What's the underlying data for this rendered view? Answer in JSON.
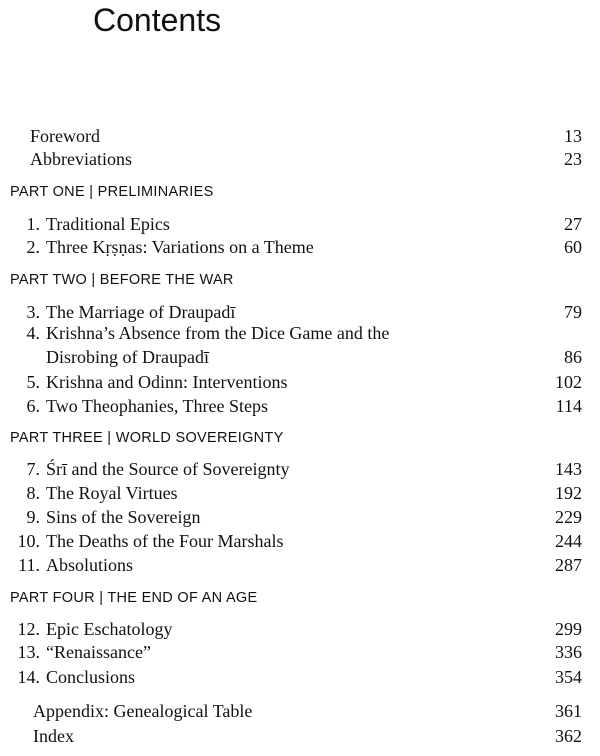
{
  "title": "Contents",
  "front_matter": [
    {
      "label": "Foreword",
      "page": "13"
    },
    {
      "label": "Abbreviations",
      "page": "23"
    }
  ],
  "parts": [
    {
      "heading": "PART ONE | PRELIMINARIES",
      "chapters": [
        {
          "number": "1.",
          "title": "Traditional Epics",
          "page": "27"
        },
        {
          "number": "2.",
          "title": "Three Kṛṣṇas: Variations on a Theme",
          "page": "60"
        }
      ]
    },
    {
      "heading": "PART TWO | BEFORE THE WAR",
      "chapters": [
        {
          "number": "3.",
          "title": "The Marriage of Draupadī",
          "page": "79"
        },
        {
          "number": "4.",
          "title": "Krishna’s Absence from the Dice Game and the",
          "title_cont": "Disrobing of Draupadī",
          "page": "86"
        },
        {
          "number": "5.",
          "title": "Krishna and Odinn: Interventions",
          "page": "102"
        },
        {
          "number": "6.",
          "title": "Two Theophanies, Three Steps",
          "page": "114"
        }
      ]
    },
    {
      "heading": "PART THREE | WORLD SOVEREIGNTY",
      "chapters": [
        {
          "number": "7.",
          "title": "Śrī and the Source of Sovereignty",
          "page": "143"
        },
        {
          "number": "8.",
          "title": "The Royal Virtues",
          "page": "192"
        },
        {
          "number": "9.",
          "title": "Sins of the Sovereign",
          "page": "229"
        },
        {
          "number": "10.",
          "title": "The Deaths of the Four Marshals",
          "page": "244"
        },
        {
          "number": "11.",
          "title": "Absolutions",
          "page": "287"
        }
      ]
    },
    {
      "heading": "PART FOUR | THE END OF AN AGE",
      "chapters": [
        {
          "number": "12.",
          "title": "Epic Eschatology",
          "page": "299"
        },
        {
          "number": "13.",
          "title": "“Renaissance”",
          "page": "336"
        },
        {
          "number": "14.",
          "title": "Conclusions",
          "page": "354"
        }
      ]
    }
  ],
  "back_matter": [
    {
      "label": "Appendix: Genealogical Table",
      "page": "361"
    },
    {
      "label": "Index",
      "page": "362"
    }
  ]
}
